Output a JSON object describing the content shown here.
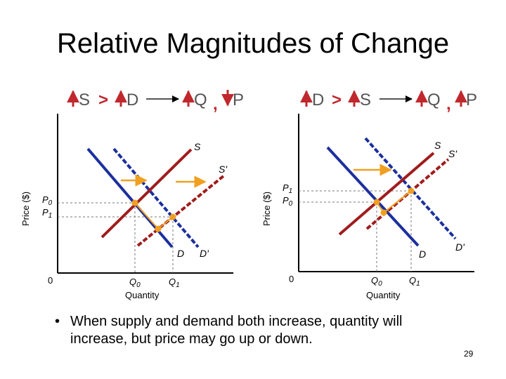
{
  "title": "Relative Magnitudes of Change",
  "left": {
    "header": {
      "c1": "S",
      "gt": ">",
      "c2": "D",
      "q": "Q",
      "comma": ",",
      "p": "P"
    },
    "labels": {
      "s": "S",
      "s_prime": "S'",
      "d": "D",
      "d_prime": "D'",
      "p0": "P",
      "p0_sub": "0",
      "p1": "P",
      "p1_sub": "1",
      "q0": "Q",
      "q0_sub": "0",
      "q1": "Q",
      "q1_sub": "1",
      "origin": "0",
      "xlabel": "Quantity",
      "ylabel": "Price ($)"
    }
  },
  "right": {
    "header": {
      "c1": "D",
      "gt": ">",
      "c2": "S",
      "q": "Q",
      "comma": ",",
      "p": "P"
    },
    "labels": {
      "s": "S",
      "s_prime": "S'",
      "d": "D",
      "d_prime": "D'",
      "p1": "P",
      "p1_sub": "1",
      "p0": "P",
      "p0_sub": "0",
      "q0": "Q",
      "q0_sub": "0",
      "q1": "Q",
      "q1_sub": "1",
      "origin": "0",
      "xlabel": "Quantity",
      "ylabel": "Price ($)"
    }
  },
  "colors": {
    "supply": "#a01c1c",
    "demand": "#1c2f9e",
    "arrow": "#f0a020",
    "point": "#f0a020",
    "header_arrow": "#c0282d"
  },
  "bullet": {
    "marker": "•",
    "text": "When supply and demand both increase, quantity will increase, but price may go up or down."
  },
  "page_number": "29"
}
